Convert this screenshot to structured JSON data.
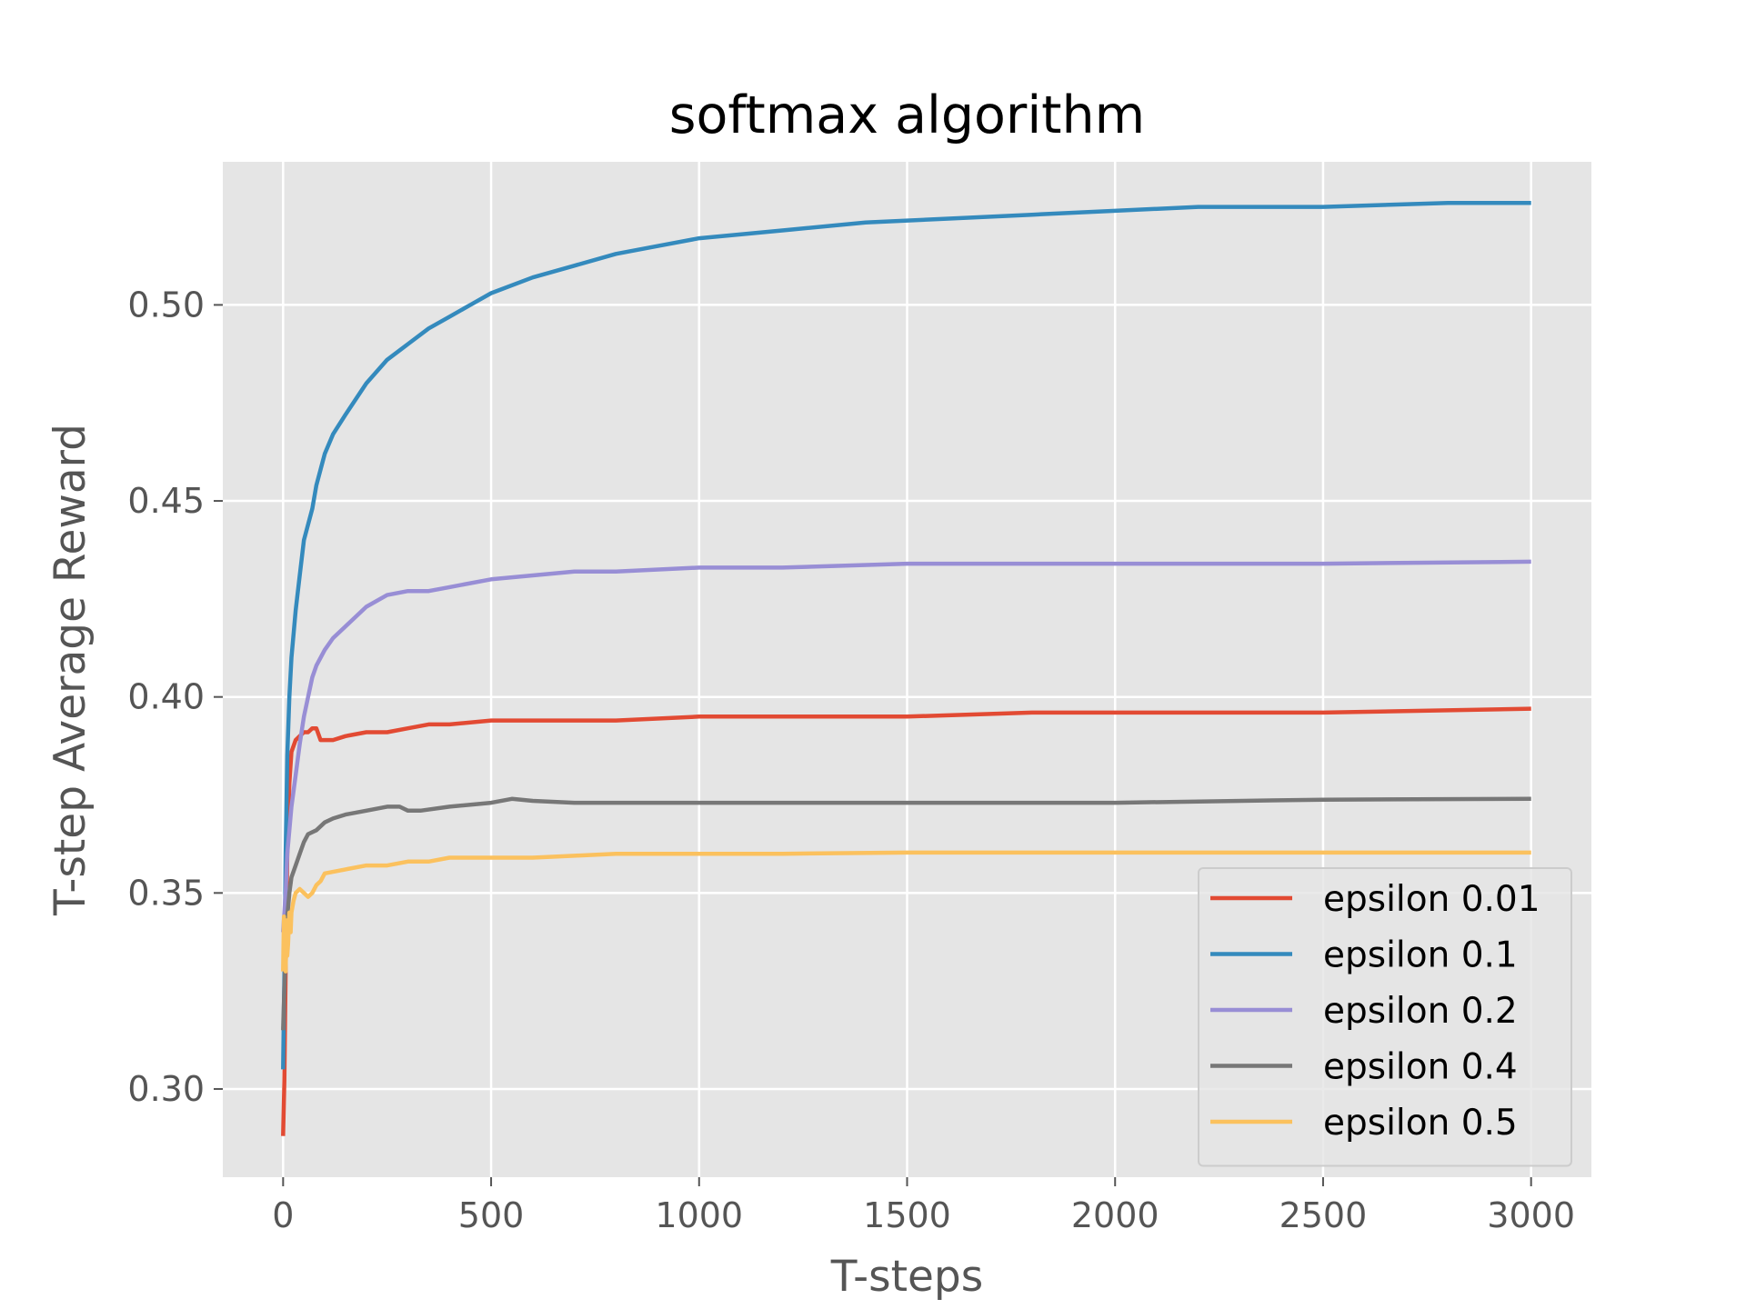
{
  "chart_data": {
    "type": "line",
    "title": "softmax algorithm",
    "xlabel": "T-steps",
    "ylabel": "T-step Average Reward",
    "xlim": [
      -145,
      3145
    ],
    "ylim": [
      0.2775,
      0.5365
    ],
    "xticks": [
      0,
      500,
      1000,
      1500,
      2000,
      2500,
      3000
    ],
    "yticks": [
      0.3,
      0.35,
      0.4,
      0.45,
      0.5
    ],
    "xtick_labels": [
      "0",
      "500",
      "1000",
      "1500",
      "2000",
      "2500",
      "3000"
    ],
    "ytick_labels": [
      "0.30",
      "0.35",
      "0.40",
      "0.45",
      "0.50"
    ],
    "grid": true,
    "background": "#e5e5e5",
    "legend_position": "lower right",
    "series": [
      {
        "name": "epsilon 0.01",
        "color": "#e24a33",
        "x": [
          0,
          3,
          6,
          10,
          15,
          20,
          30,
          40,
          50,
          60,
          70,
          80,
          90,
          100,
          120,
          150,
          200,
          250,
          300,
          350,
          400,
          500,
          600,
          700,
          800,
          1000,
          1200,
          1500,
          1800,
          2000,
          2500,
          3000
        ],
        "y": [
          0.288,
          0.302,
          0.33,
          0.36,
          0.378,
          0.386,
          0.389,
          0.39,
          0.391,
          0.391,
          0.392,
          0.392,
          0.389,
          0.389,
          0.389,
          0.39,
          0.391,
          0.391,
          0.392,
          0.393,
          0.393,
          0.394,
          0.394,
          0.394,
          0.394,
          0.395,
          0.395,
          0.395,
          0.396,
          0.396,
          0.396,
          0.397
        ]
      },
      {
        "name": "epsilon 0.1",
        "color": "#348abd",
        "x": [
          0,
          3,
          6,
          10,
          15,
          20,
          30,
          40,
          50,
          60,
          70,
          80,
          100,
          120,
          150,
          200,
          250,
          300,
          350,
          400,
          450,
          500,
          600,
          700,
          800,
          900,
          1000,
          1200,
          1400,
          1600,
          1800,
          2000,
          2200,
          2500,
          2800,
          3000
        ],
        "y": [
          0.305,
          0.33,
          0.36,
          0.385,
          0.4,
          0.41,
          0.422,
          0.431,
          0.44,
          0.444,
          0.448,
          0.454,
          0.462,
          0.467,
          0.472,
          0.48,
          0.486,
          0.49,
          0.494,
          0.497,
          0.5,
          0.503,
          0.507,
          0.51,
          0.513,
          0.515,
          0.517,
          0.519,
          0.521,
          0.522,
          0.523,
          0.524,
          0.525,
          0.525,
          0.526,
          0.526
        ]
      },
      {
        "name": "epsilon 0.2",
        "color": "#988ed5",
        "x": [
          0,
          3,
          6,
          10,
          15,
          20,
          30,
          40,
          50,
          60,
          70,
          80,
          100,
          120,
          150,
          200,
          250,
          300,
          350,
          400,
          500,
          600,
          700,
          800,
          1000,
          1200,
          1500,
          2000,
          2500,
          3000
        ],
        "y": [
          0.34,
          0.345,
          0.35,
          0.36,
          0.366,
          0.372,
          0.38,
          0.388,
          0.395,
          0.4,
          0.405,
          0.408,
          0.412,
          0.415,
          0.418,
          0.423,
          0.426,
          0.427,
          0.427,
          0.428,
          0.43,
          0.431,
          0.432,
          0.432,
          0.433,
          0.433,
          0.434,
          0.434,
          0.434,
          0.4345
        ]
      },
      {
        "name": "epsilon 0.4",
        "color": "#777777",
        "x": [
          0,
          3,
          6,
          10,
          15,
          20,
          30,
          40,
          50,
          60,
          80,
          100,
          120,
          150,
          200,
          250,
          280,
          300,
          330,
          400,
          500,
          550,
          600,
          700,
          800,
          1000,
          1200,
          1500,
          2000,
          2500,
          3000
        ],
        "y": [
          0.315,
          0.326,
          0.335,
          0.344,
          0.35,
          0.354,
          0.357,
          0.36,
          0.363,
          0.365,
          0.366,
          0.368,
          0.369,
          0.37,
          0.371,
          0.372,
          0.372,
          0.371,
          0.371,
          0.372,
          0.373,
          0.374,
          0.3735,
          0.373,
          0.373,
          0.373,
          0.373,
          0.373,
          0.373,
          0.3738,
          0.374
        ]
      },
      {
        "name": "epsilon 0.5",
        "color": "#fbc15e",
        "x": [
          0,
          2,
          4,
          6,
          8,
          10,
          12,
          15,
          18,
          20,
          25,
          30,
          40,
          50,
          60,
          70,
          80,
          90,
          100,
          150,
          200,
          250,
          300,
          350,
          400,
          500,
          600,
          700,
          800,
          1000,
          1200,
          1500,
          2000,
          2500,
          3000
        ],
        "y": [
          0.33,
          0.344,
          0.337,
          0.33,
          0.343,
          0.334,
          0.337,
          0.345,
          0.34,
          0.345,
          0.348,
          0.35,
          0.351,
          0.35,
          0.349,
          0.35,
          0.352,
          0.353,
          0.355,
          0.356,
          0.357,
          0.357,
          0.358,
          0.358,
          0.359,
          0.359,
          0.359,
          0.3595,
          0.36,
          0.36,
          0.36,
          0.3603,
          0.3603,
          0.3603,
          0.3603
        ]
      }
    ]
  }
}
